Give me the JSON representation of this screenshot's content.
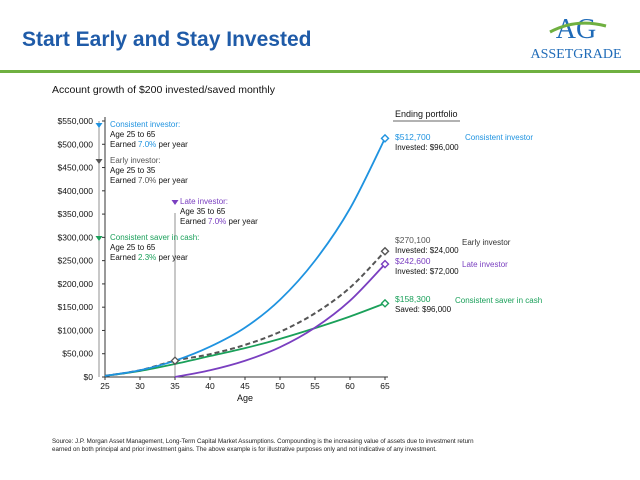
{
  "header": {
    "title": "Start Early and Stay Invested",
    "logo_mark": "AG",
    "logo_text": "ASSETGRADE"
  },
  "subtitle": "Account growth of $200 invested/saved monthly",
  "source": "Source: J.P. Morgan Asset Management, Long-Term Capital Market Assumptions. Compounding is the increasing value of assets due to investment return earned on both principal and prior investment gains. The above example is for illustrative purposes only and not indicative of any investment.",
  "colors": {
    "title": "#1f5ba8",
    "rule": "#6fb040",
    "consistent": "#1f93e0",
    "early": "#555555",
    "late": "#7a3fc0",
    "cash": "#1aa05a"
  },
  "chart_data": {
    "type": "line",
    "xlabel": "Age",
    "ylabel": "",
    "xlim": [
      25,
      65
    ],
    "ylim": [
      0,
      550000
    ],
    "x_ticks": [
      25,
      30,
      35,
      40,
      45,
      50,
      55,
      60,
      65
    ],
    "y_ticks": [
      0,
      50000,
      100000,
      150000,
      200000,
      250000,
      300000,
      350000,
      400000,
      450000,
      500000,
      550000
    ],
    "y_tick_labels": [
      "$0",
      "$50,000",
      "$100,000",
      "$150,000",
      "$200,000",
      "$250,000",
      "$300,000",
      "$350,000",
      "$400,000",
      "$450,000",
      "$500,000",
      "$550,000"
    ],
    "ending_header": "Ending portfolio",
    "series": [
      {
        "key": "consistent",
        "name": "Consistent investor",
        "color": "#1f93e0",
        "dash": false,
        "x": [
          25,
          30,
          35,
          40,
          45,
          50,
          55,
          60,
          65
        ],
        "values": [
          2400,
          14500,
          35000,
          65000,
          106000,
          166000,
          250000,
          362000,
          512700
        ],
        "ending_value": "$512,700",
        "ending_detail": "Invested: $96,000",
        "annotation": {
          "title": "Consistent investor:",
          "age_range": "Age 25 to 65",
          "earned_prefix": "Earned ",
          "rate": "7.0%",
          "earned_suffix": " per year"
        }
      },
      {
        "key": "early",
        "name": "Early investor",
        "color": "#555555",
        "dash": true,
        "x": [
          25,
          30,
          35,
          40,
          45,
          50,
          55,
          60,
          65
        ],
        "values": [
          2400,
          14500,
          35000,
          49000,
          69000,
          97000,
          137000,
          192000,
          270100
        ],
        "ending_value": "$270,100",
        "ending_detail": "Invested: $24,000",
        "annotation": {
          "title": "Early investor:",
          "age_range": "Age 25 to 35",
          "earned_prefix": "Earned ",
          "rate": "7.0%",
          "earned_suffix": " per year"
        }
      },
      {
        "key": "late",
        "name": "Late investor",
        "color": "#7a3fc0",
        "dash": false,
        "x": [
          35,
          40,
          45,
          50,
          55,
          60,
          65
        ],
        "values": [
          0,
          14500,
          35000,
          64000,
          106000,
          164000,
          242600
        ],
        "ending_value": "$242,600",
        "ending_detail": "Invested: $72,000",
        "annotation": {
          "title": "Late investor:",
          "age_range": "Age 35 to 65",
          "earned_prefix": "Earned ",
          "rate": "7.0%",
          "earned_suffix": " per year"
        }
      },
      {
        "key": "cash",
        "name": "Consistent saver in cash",
        "color": "#1aa05a",
        "dash": false,
        "x": [
          25,
          30,
          35,
          40,
          45,
          50,
          55,
          60,
          65
        ],
        "values": [
          2400,
          13000,
          28000,
          45000,
          62000,
          82000,
          105000,
          130000,
          158300
        ],
        "ending_value": "$158,300",
        "ending_detail": "Saved: $96,000",
        "annotation": {
          "title": "Consistent saver in cash:",
          "age_range": "Age 25 to 65",
          "earned_prefix": "Earned ",
          "rate": "2.3%",
          "earned_suffix": " per year"
        }
      }
    ]
  }
}
